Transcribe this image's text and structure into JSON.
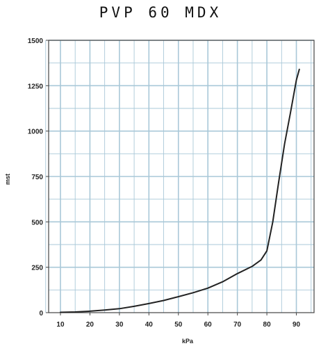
{
  "chart_data": {
    "type": "line",
    "title": "PVP 60 MDX",
    "xlabel": "kPa",
    "ylabel": "mst",
    "xlim": [
      6,
      96
    ],
    "ylim": [
      0,
      1500
    ],
    "x_ticks": [
      "10",
      "20",
      "30",
      "40",
      "50",
      "60",
      "70",
      "80",
      "90"
    ],
    "y_ticks": [
      "0",
      "250",
      "500",
      "750",
      "1000",
      "1250",
      "1500"
    ],
    "grid": true,
    "colors": {
      "line": "#222222",
      "grid": "#a9c8d8",
      "frame": "#444444"
    },
    "series": [
      {
        "x": [
          10,
          15,
          20,
          25,
          30,
          35,
          40,
          45,
          50,
          55,
          60,
          65,
          70,
          75,
          78,
          80,
          82,
          84,
          86,
          88,
          90,
          91
        ],
        "y": [
          2,
          4,
          8,
          14,
          22,
          35,
          50,
          67,
          88,
          110,
          135,
          170,
          215,
          255,
          290,
          340,
          500,
          720,
          930,
          1100,
          1280,
          1340
        ]
      }
    ]
  }
}
